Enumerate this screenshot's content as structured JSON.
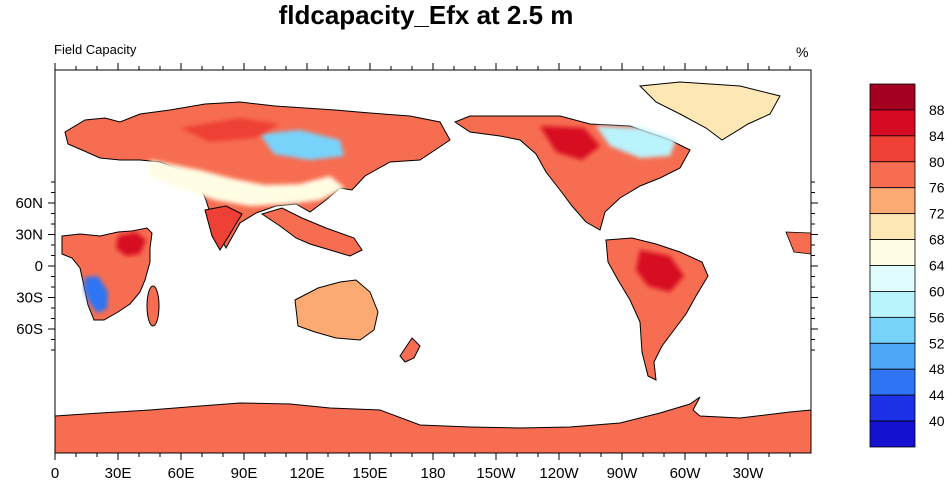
{
  "title": "fldcapacity_Efx at 2.5 m",
  "left_label": "Field Capacity",
  "right_label": "%",
  "axes": {
    "lon_ticks": [
      "0",
      "30E",
      "60E",
      "90E",
      "120E",
      "150E",
      "180",
      "150W",
      "120W",
      "90W",
      "60W",
      "30W"
    ],
    "lat_ticks": [
      "60N",
      "30N",
      "0",
      "30S",
      "60S"
    ]
  },
  "colorbar": {
    "labels": [
      "88",
      "84",
      "80",
      "76",
      "72",
      "68",
      "64",
      "60",
      "56",
      "52",
      "48",
      "44",
      "40"
    ],
    "colors_top_to_bottom": [
      "#a50021",
      "#d70a24",
      "#ee4035",
      "#f76d51",
      "#fbaa73",
      "#fde7b5",
      "#fffde3",
      "#e0fcfc",
      "#b9f3fc",
      "#78d3fb",
      "#4fa7f8",
      "#2f74f3",
      "#1c30e6",
      "#1511d0"
    ]
  },
  "legend_colors": {
    "ocean": "#ffffff",
    "antarctica": "#f76d51",
    "greenland": "#fde7b5"
  }
}
